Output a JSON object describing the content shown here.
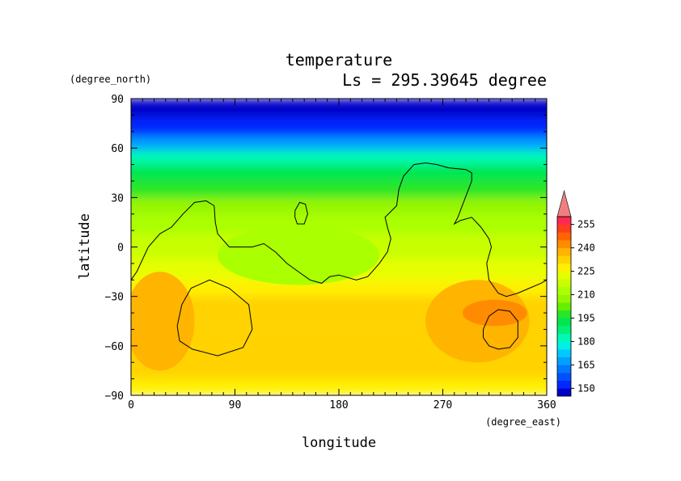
{
  "chart_data": {
    "type": "heatmap",
    "title": "temperature",
    "subtitle": "Ls = 295.39645 degree",
    "xlabel": "longitude",
    "ylabel": "latitude",
    "x_units": "(degree_east)",
    "y_units": "(degree_north)",
    "xlim": [
      0,
      360
    ],
    "ylim": [
      -90,
      90
    ],
    "x_ticks": [
      0,
      90,
      180,
      270,
      360
    ],
    "y_ticks": [
      90,
      60,
      30,
      0,
      -30,
      -60,
      -90
    ],
    "x_tick_labels": [
      "0",
      "90",
      "180",
      "270",
      "360"
    ],
    "y_tick_labels": [
      "90",
      "60",
      "30",
      "0",
      "−30",
      "−60",
      "−90"
    ],
    "colorbar": {
      "levels": [
        145,
        150,
        155,
        160,
        165,
        170,
        175,
        180,
        185,
        190,
        195,
        200,
        205,
        210,
        215,
        220,
        225,
        230,
        235,
        240,
        245,
        250,
        255,
        260
      ],
      "colors": [
        "#0000c8",
        "#0028ff",
        "#0050ff",
        "#0078ff",
        "#00a0ff",
        "#00c8ff",
        "#00f0e6",
        "#00fab4",
        "#00f078",
        "#00e650",
        "#28e628",
        "#64f000",
        "#96f500",
        "#aaff00",
        "#c8ff00",
        "#e6ff00",
        "#fff000",
        "#ffd200",
        "#ffb400",
        "#ff8c00",
        "#ff6400",
        "#ff3c1e",
        "#ff2850"
      ],
      "tick_labels": [
        "255",
        "240",
        "225",
        "210",
        "195",
        "180",
        "165",
        "150"
      ],
      "extend": "max",
      "extend_color": "#f08080"
    },
    "field": {
      "lat_band_values": [
        {
          "lat": 85,
          "value": 146
        },
        {
          "lat": 72,
          "value": 152
        },
        {
          "lat": 62,
          "value": 168
        },
        {
          "lat": 55,
          "value": 180
        },
        {
          "lat": 45,
          "value": 192
        },
        {
          "lat": 35,
          "value": 198
        },
        {
          "lat": 25,
          "value": 206
        },
        {
          "lat": 15,
          "value": 211
        },
        {
          "lat": 0,
          "value": 216
        },
        {
          "lat": -15,
          "value": 222
        },
        {
          "lat": -25,
          "value": 228
        },
        {
          "lat": -35,
          "value": 232
        },
        {
          "lat": -55,
          "value": 234
        },
        {
          "lat": -75,
          "value": 232
        },
        {
          "lat": -85,
          "value": 228
        }
      ],
      "anomalies": [
        {
          "lon": 145,
          "lat": -5,
          "dlon": 70,
          "dlat": 18,
          "value": 212
        },
        {
          "lon": 25,
          "lat": -45,
          "dlon": 30,
          "dlat": 30,
          "value": 236
        },
        {
          "lon": 300,
          "lat": -45,
          "dlon": 45,
          "dlat": 25,
          "value": 238
        },
        {
          "lon": 315,
          "lat": -40,
          "dlon": 28,
          "dlat": 8,
          "value": 244
        }
      ]
    },
    "contours": [
      {
        "name": "topography",
        "points": [
          [
            0,
            -20
          ],
          [
            5,
            -15
          ],
          [
            15,
            0
          ],
          [
            25,
            8
          ],
          [
            35,
            12
          ],
          [
            45,
            20
          ],
          [
            55,
            27
          ],
          [
            65,
            28
          ],
          [
            72,
            25
          ],
          [
            73,
            15
          ],
          [
            75,
            8
          ],
          [
            85,
            0
          ],
          [
            95,
            0
          ],
          [
            105,
            0
          ],
          [
            115,
            2
          ],
          [
            125,
            -3
          ],
          [
            135,
            -10
          ],
          [
            145,
            -15
          ],
          [
            155,
            -20
          ],
          [
            165,
            -22
          ],
          [
            172,
            -18
          ],
          [
            180,
            -17
          ],
          [
            185,
            -18
          ],
          [
            195,
            -20
          ],
          [
            205,
            -18
          ],
          [
            215,
            -10
          ],
          [
            222,
            -3
          ],
          [
            225,
            5
          ],
          [
            222,
            12
          ],
          [
            220,
            18
          ],
          [
            230,
            25
          ],
          [
            232,
            35
          ],
          [
            236,
            43
          ],
          [
            245,
            50
          ],
          [
            255,
            51
          ],
          [
            265,
            50
          ],
          [
            275,
            48
          ],
          [
            290,
            47
          ],
          [
            295,
            45
          ],
          [
            295,
            40
          ],
          [
            289,
            29
          ],
          [
            283,
            18
          ],
          [
            280,
            14
          ],
          [
            285,
            16
          ],
          [
            295,
            18
          ],
          [
            303,
            12
          ],
          [
            310,
            5
          ],
          [
            312,
            0
          ],
          [
            308,
            -10
          ],
          [
            310,
            -20
          ],
          [
            318,
            -28
          ],
          [
            325,
            -30
          ],
          [
            335,
            -28
          ],
          [
            345,
            -25
          ],
          [
            355,
            -22
          ],
          [
            360,
            -20
          ]
        ]
      },
      {
        "name": "crater-small",
        "points": [
          [
            142,
            22
          ],
          [
            146,
            27
          ],
          [
            151,
            26
          ],
          [
            153,
            20
          ],
          [
            150,
            14
          ],
          [
            144,
            14
          ],
          [
            142,
            18
          ],
          [
            142,
            22
          ]
        ]
      },
      {
        "name": "crater-left",
        "points": [
          [
            40,
            -48
          ],
          [
            44,
            -35
          ],
          [
            52,
            -25
          ],
          [
            68,
            -20
          ],
          [
            85,
            -25
          ],
          [
            102,
            -35
          ],
          [
            105,
            -50
          ],
          [
            97,
            -61
          ],
          [
            75,
            -66
          ],
          [
            53,
            -62
          ],
          [
            42,
            -57
          ],
          [
            40,
            -48
          ]
        ]
      },
      {
        "name": "crater-right",
        "points": [
          [
            305,
            -50
          ],
          [
            310,
            -42
          ],
          [
            318,
            -38
          ],
          [
            328,
            -39
          ],
          [
            335,
            -45
          ],
          [
            335,
            -55
          ],
          [
            328,
            -61
          ],
          [
            318,
            -62
          ],
          [
            310,
            -60
          ],
          [
            305,
            -55
          ],
          [
            305,
            -50
          ]
        ]
      }
    ],
    "grid": false,
    "legend": "right"
  }
}
